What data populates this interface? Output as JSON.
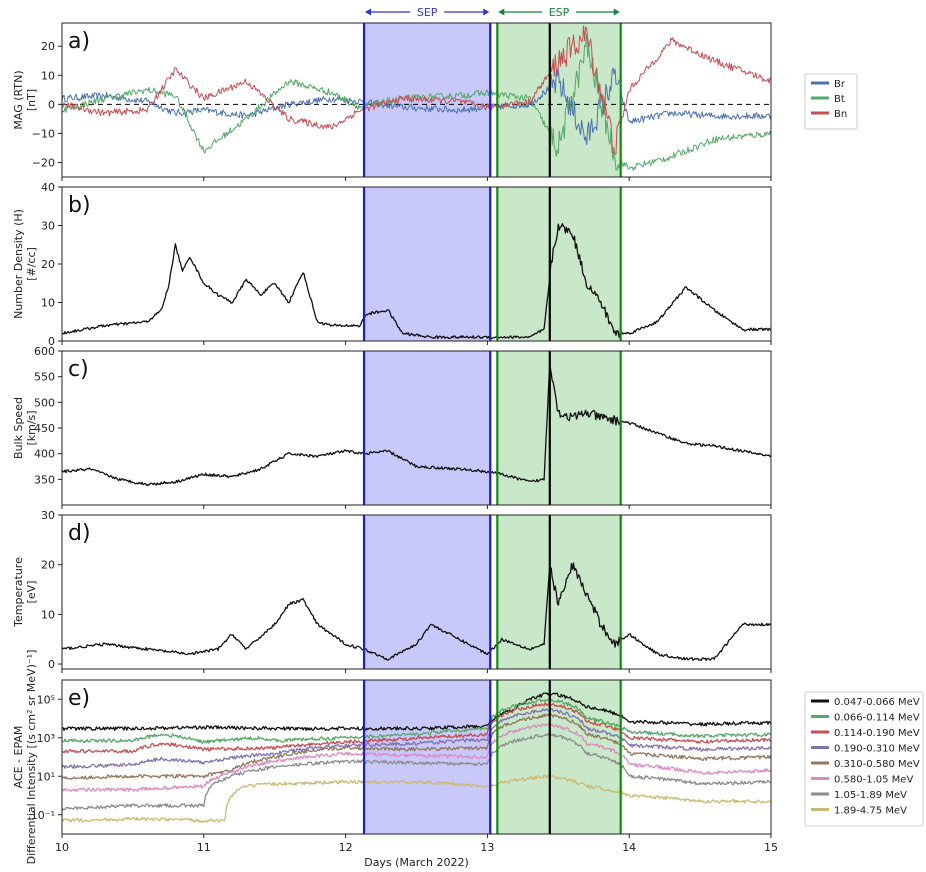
{
  "chart_data": {
    "type": "line",
    "xlabel": "Days (March 2022)",
    "xlim": [
      10,
      15
    ],
    "xticks": [
      "10",
      "11",
      "12",
      "13",
      "14",
      "15"
    ],
    "regions": [
      {
        "name": "SEP",
        "start": 12.13,
        "end": 13.02,
        "color": "#3333cc",
        "fill": "#c8c8fa"
      },
      {
        "name": "ESP",
        "start": 13.07,
        "end": 13.94,
        "color": "#16833c",
        "fill": "#c9e7c9"
      }
    ],
    "shock_time": 13.44,
    "panels": [
      {
        "label": "a)",
        "ylabel": "MAG (RTN)",
        "yunit": "[nT]",
        "ylim": [
          -25,
          28
        ],
        "yticks": [
          "−20",
          "−10",
          "0",
          "10",
          "20"
        ],
        "ytick_values": [
          -20,
          -10,
          0,
          10,
          20
        ],
        "zero_line": true,
        "legend": {
          "position": "right-outside"
        },
        "series": [
          {
            "name": "Br",
            "color": "#4c72b0",
            "x": [
              10.0,
              10.3,
              10.6,
              10.8,
              11.0,
              11.3,
              11.6,
              11.9,
              12.1,
              12.4,
              12.8,
              13.0,
              13.3,
              13.5,
              13.7,
              13.9,
              14.0,
              14.3,
              14.6,
              15.0
            ],
            "values": [
              2,
              3,
              1,
              -3,
              -2,
              -4,
              0,
              2,
              1,
              -1,
              -2,
              -1,
              0,
              8,
              -12,
              10,
              -6,
              -3,
              -4,
              -4
            ]
          },
          {
            "name": "Bt",
            "color": "#55a868",
            "x": [
              10.0,
              10.3,
              10.6,
              10.8,
              11.0,
              11.3,
              11.6,
              11.9,
              12.1,
              12.4,
              12.8,
              13.0,
              13.3,
              13.5,
              13.7,
              13.9,
              14.0,
              14.3,
              14.6,
              15.0
            ],
            "values": [
              -2,
              2,
              5,
              3,
              -16,
              -5,
              8,
              4,
              -1,
              2,
              3,
              4,
              2,
              -15,
              20,
              -18,
              -22,
              -18,
              -12,
              -10
            ]
          },
          {
            "name": "Bn",
            "color": "#c44e52",
            "x": [
              10.0,
              10.3,
              10.6,
              10.8,
              11.0,
              11.3,
              11.6,
              11.9,
              12.1,
              12.4,
              12.8,
              13.0,
              13.3,
              13.5,
              13.7,
              13.9,
              14.0,
              14.3,
              14.6,
              15.0
            ],
            "values": [
              0,
              -3,
              -2,
              12,
              2,
              8,
              -5,
              -8,
              -2,
              2,
              1,
              -1,
              1,
              15,
              24,
              -15,
              5,
              22,
              15,
              8
            ]
          }
        ]
      },
      {
        "label": "b)",
        "ylabel": "Number Density (H)",
        "yunit": "[#/cc]",
        "ylim": [
          0,
          40
        ],
        "yticks": [
          "0",
          "10",
          "20",
          "30",
          "40"
        ],
        "ytick_values": [
          0,
          10,
          20,
          30,
          40
        ],
        "series": [
          {
            "name": "",
            "color": "#111111",
            "x": [
              10.0,
              10.3,
              10.6,
              10.7,
              10.75,
              10.8,
              10.85,
              10.9,
              11.0,
              11.1,
              11.2,
              11.3,
              11.4,
              11.5,
              11.6,
              11.7,
              11.8,
              11.9,
              12.0,
              12.1,
              12.15,
              12.3,
              12.4,
              12.6,
              12.8,
              13.0,
              13.1,
              13.3,
              13.4,
              13.45,
              13.5,
              13.6,
              13.7,
              13.8,
              13.9,
              14.0,
              14.2,
              14.4,
              14.6,
              14.8,
              15.0
            ],
            "values": [
              2,
              4,
              5,
              8,
              14,
              25,
              18,
              22,
              15,
              12,
              10,
              16,
              12,
              15,
              10,
              18,
              5,
              4,
              4,
              4,
              7,
              8,
              2,
              1,
              1,
              1,
              1,
              1,
              3,
              20,
              30,
              28,
              15,
              10,
              2,
              2,
              5,
              14,
              8,
              3,
              3
            ]
          }
        ]
      },
      {
        "label": "c)",
        "ylabel": "Bulk Speed",
        "yunit": "[km/s]",
        "ylim": [
          300,
          600
        ],
        "yticks": [
          "350",
          "400",
          "450",
          "500",
          "550",
          "600"
        ],
        "ytick_values": [
          350,
          400,
          450,
          500,
          550,
          600
        ],
        "series": [
          {
            "name": "",
            "color": "#111111",
            "x": [
              10.0,
              10.2,
              10.4,
              10.6,
              10.8,
              11.0,
              11.2,
              11.4,
              11.6,
              11.8,
              12.0,
              12.13,
              12.3,
              12.5,
              12.8,
              13.0,
              13.1,
              13.3,
              13.4,
              13.44,
              13.5,
              13.6,
              13.7,
              13.8,
              14.0,
              14.2,
              14.4,
              14.6,
              14.8,
              15.0
            ],
            "values": [
              365,
              370,
              350,
              340,
              345,
              360,
              355,
              370,
              400,
              395,
              405,
              400,
              405,
              375,
              370,
              365,
              360,
              345,
              350,
              580,
              480,
              470,
              480,
              470,
              460,
              440,
              420,
              415,
              405,
              395
            ]
          }
        ]
      },
      {
        "label": "d)",
        "ylabel": "Temperature",
        "yunit": "[eV]",
        "ylim": [
          -1,
          30
        ],
        "yticks": [
          "0",
          "10",
          "20",
          "30"
        ],
        "ytick_values": [
          0,
          10,
          20,
          30
        ],
        "series": [
          {
            "name": "",
            "color": "#111111",
            "x": [
              10.0,
              10.3,
              10.6,
              10.9,
              11.1,
              11.2,
              11.3,
              11.5,
              11.6,
              11.7,
              11.8,
              12.0,
              12.13,
              12.3,
              12.5,
              12.6,
              12.8,
              13.0,
              13.1,
              13.3,
              13.4,
              13.44,
              13.5,
              13.6,
              13.7,
              13.8,
              13.9,
              14.0,
              14.2,
              14.4,
              14.6,
              14.8,
              15.0
            ],
            "values": [
              3,
              4,
              3,
              2,
              3,
              6,
              3,
              8,
              12,
              13,
              8,
              4,
              3,
              1,
              4,
              8,
              5,
              2,
              5,
              3,
              4,
              20,
              12,
              20,
              14,
              8,
              4,
              6,
              2,
              1,
              1,
              8,
              8
            ]
          }
        ]
      },
      {
        "label": "e)",
        "ylabel": "ACE - EPAM",
        "yunit": "Differential Intensity [(s cm² sr MeV)⁻¹]",
        "ylog": true,
        "ylim": [
          0.01,
          1000000
        ],
        "yticks": [
          "10⁻¹",
          "10¹",
          "10³",
          "10⁵"
        ],
        "ytick_values": [
          0.1,
          10,
          1000,
          100000
        ],
        "legend": {
          "position": "right-outside"
        },
        "series": [
          {
            "name": "0.047-0.066 MeV",
            "color": "#111111",
            "x": [
              10.0,
              10.5,
              11.0,
              11.5,
              12.0,
              12.5,
              13.0,
              13.2,
              13.44,
              13.7,
              14.0,
              14.5,
              15.0
            ],
            "values": [
              3000,
              3000,
              3500,
              3000,
              3000,
              3000,
              4000,
              30000,
              200000,
              40000,
              7000,
              5000,
              6000
            ]
          },
          {
            "name": "0.066-0.114 MeV",
            "color": "#55a868",
            "x": [
              10.0,
              10.5,
              10.7,
              11.0,
              11.4,
              11.5,
              12.0,
              12.5,
              13.0,
              13.44,
              13.7,
              14.0,
              14.5,
              15.0
            ],
            "values": [
              700,
              700,
              1500,
              600,
              1000,
              700,
              1000,
              1500,
              3000,
              100000,
              10000,
              2000,
              1200,
              1500
            ]
          },
          {
            "name": "0.114-0.190 MeV",
            "color": "#c44e52",
            "x": [
              10.0,
              10.5,
              10.7,
              11.0,
              11.5,
              12.0,
              12.5,
              13.0,
              13.44,
              13.7,
              14.0,
              14.5,
              15.0
            ],
            "values": [
              200,
              200,
              500,
              250,
              300,
              600,
              900,
              1500,
              60000,
              7000,
              1000,
              600,
              800
            ]
          },
          {
            "name": "0.190-0.310 MeV",
            "color": "#8172b2",
            "x": [
              10.0,
              10.5,
              10.7,
              11.0,
              11.5,
              12.0,
              12.5,
              13.0,
              13.44,
              13.7,
              14.0,
              14.5,
              15.0
            ],
            "values": [
              30,
              40,
              80,
              50,
              150,
              400,
              500,
              800,
              30000,
              3000,
              400,
              250,
              300
            ]
          },
          {
            "name": "0.310-0.580 MeV",
            "color": "#937860",
            "x": [
              10.0,
              10.5,
              11.0,
              11.2,
              11.5,
              12.0,
              12.5,
              13.0,
              13.44,
              13.7,
              14.0,
              14.5,
              15.0
            ],
            "values": [
              8,
              10,
              10,
              20,
              100,
              300,
              250,
              300,
              15000,
              1500,
              150,
              80,
              100
            ]
          },
          {
            "name": "0.580-1.05 MeV",
            "color": "#da8bc3",
            "x": [
              10.0,
              10.5,
              11.0,
              11.2,
              11.5,
              12.0,
              12.5,
              13.0,
              13.44,
              13.7,
              14.0,
              14.5,
              15.0
            ],
            "values": [
              2,
              2,
              3,
              15,
              60,
              150,
              120,
              100,
              5000,
              500,
              40,
              15,
              20
            ]
          },
          {
            "name": "1.05-1.89 MeV",
            "color": "#8c8c8c",
            "x": [
              10.0,
              10.5,
              11.0,
              11.2,
              11.5,
              12.0,
              12.5,
              13.0,
              13.44,
              13.7,
              14.0,
              14.5,
              15.0
            ],
            "values": [
              0.2,
              0.3,
              0.3,
              10,
              30,
              60,
              50,
              40,
              1500,
              150,
              10,
              4,
              5
            ]
          },
          {
            "name": "1.89-4.75 MeV",
            "color": "#ccb974",
            "x": [
              10.0,
              10.5,
              11.0,
              11.15,
              11.3,
              11.5,
              12.0,
              12.5,
              13.0,
              13.44,
              13.7,
              14.0,
              14.5,
              15.0
            ],
            "values": [
              0.05,
              0.06,
              0.05,
              0.05,
              3,
              4,
              5,
              5,
              3,
              10,
              3,
              1,
              0.5,
              0.5
            ]
          }
        ]
      }
    ]
  }
}
